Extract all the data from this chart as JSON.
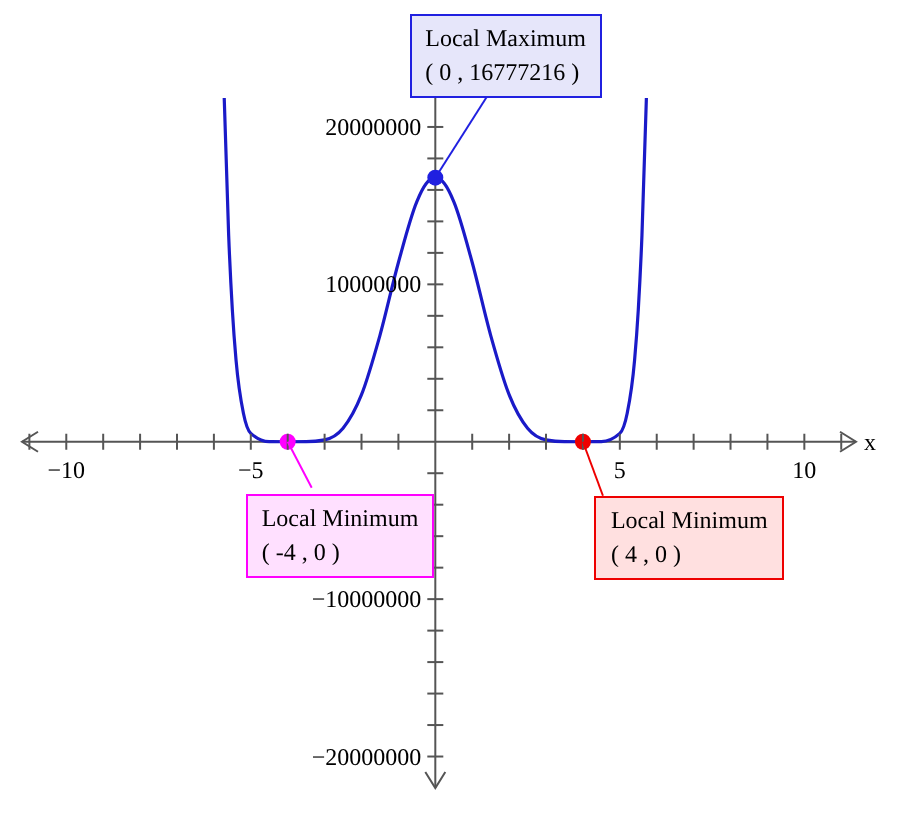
{
  "chart_data": {
    "type": "line",
    "xlabel": "x",
    "xlim": [
      -11.2,
      11.4
    ],
    "ylim": [
      -22000000,
      24000000
    ],
    "xticks": [
      {
        "value": -11,
        "label": null
      },
      -10,
      {
        "value": -9,
        "label": null
      },
      {
        "value": -8,
        "label": null
      },
      {
        "value": -7,
        "label": null
      },
      {
        "value": -6,
        "label": null
      },
      -5,
      {
        "value": -4,
        "label": null
      },
      {
        "value": -3,
        "label": null
      },
      {
        "value": -2,
        "label": null
      },
      {
        "value": -1,
        "label": null
      },
      {
        "value": 1,
        "label": null
      },
      {
        "value": 2,
        "label": null
      },
      {
        "value": 3,
        "label": null
      },
      {
        "value": 4,
        "label": null
      },
      5,
      {
        "value": 6,
        "label": null
      },
      {
        "value": 7,
        "label": null
      },
      {
        "value": 8,
        "label": null
      },
      {
        "value": 9,
        "label": null
      },
      10,
      {
        "value": 11,
        "label": null
      }
    ],
    "yticks": [
      -20000000,
      {
        "value": -18000000,
        "label": null
      },
      {
        "value": -16000000,
        "label": null
      },
      {
        "value": -14000000,
        "label": null
      },
      {
        "value": -12000000,
        "label": null
      },
      -10000000,
      {
        "value": -8000000,
        "label": null
      },
      {
        "value": -6000000,
        "label": null
      },
      {
        "value": -4000000,
        "label": null
      },
      {
        "value": -2000000,
        "label": null
      },
      {
        "value": 2000000,
        "label": null
      },
      {
        "value": 4000000,
        "label": null
      },
      {
        "value": 6000000,
        "label": null
      },
      {
        "value": 8000000,
        "label": null
      },
      10000000,
      {
        "value": 12000000,
        "label": null
      },
      {
        "value": 14000000,
        "label": null
      },
      {
        "value": 16000000,
        "label": null
      },
      {
        "value": 18000000,
        "label": null
      },
      20000000,
      {
        "value": 22000000,
        "label": null
      }
    ],
    "grid": false,
    "line_style": "solid",
    "series": [
      {
        "marker": "none",
        "color": "#1a1ac8",
        "x": [
          -5.72,
          -5.6,
          -5.5,
          -5.4,
          -5.2,
          -5,
          -4.5,
          -4,
          -3.5,
          -3,
          -2.5,
          -2,
          -1.5,
          -1,
          -0.5,
          -0.25,
          0,
          0.25,
          0.5,
          1,
          1.5,
          2,
          2.5,
          3,
          3.5,
          4,
          4.5,
          5,
          5.2,
          5.4,
          5.5,
          5.6,
          5.72
        ],
        "values": [
          21840000,
          13130000,
          8370000,
          5190000,
          1810000,
          530000,
          6000,
          0,
          3000,
          120000,
          860000,
          2990000,
          6760000,
          11390000,
          15260000,
          16390000,
          16777216,
          16390000,
          15260000,
          11390000,
          6760000,
          2990000,
          860000,
          120000,
          3000,
          0,
          6000,
          530000,
          1810000,
          5190000,
          8370000,
          13130000,
          21840000
        ]
      },
      {
        "type": "scatter",
        "marker": "circle",
        "color": "#2020e0",
        "x": [
          0
        ],
        "values": [
          16777216
        ]
      },
      {
        "type": "scatter",
        "marker": "circle",
        "color": "#ff00ff",
        "x": [
          -4
        ],
        "values": [
          0
        ]
      },
      {
        "type": "scatter",
        "marker": "circle",
        "color": "#ee0000",
        "x": [
          4
        ],
        "values": [
          0
        ]
      }
    ],
    "annotations": [
      {
        "text": "Local Maximum\n( 0 , 16777216 )",
        "x": 0,
        "y": 16777216
      },
      {
        "text": "Local Minimum\n( -4 , 0 )",
        "x": -4,
        "y": 0
      },
      {
        "text": "Local Minimum\n( 4 , 0 )",
        "x": 4,
        "y": 0
      }
    ]
  }
}
